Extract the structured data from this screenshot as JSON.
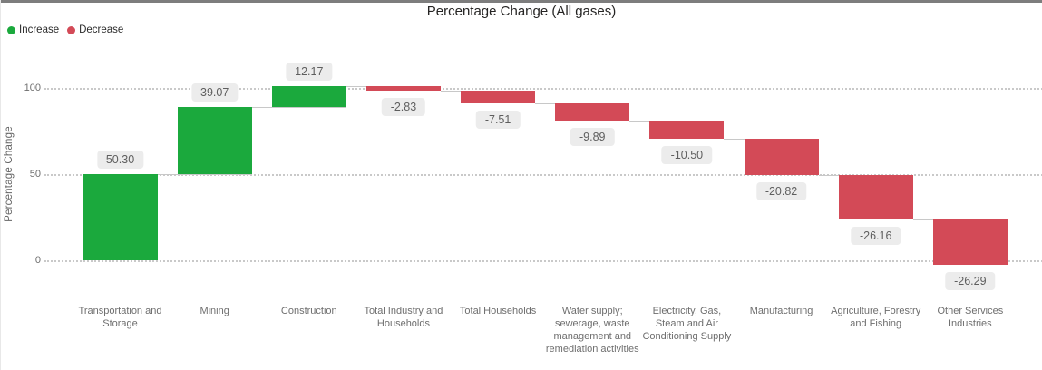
{
  "meta": {
    "title": "Percentage Change (All gases)"
  },
  "legend": {
    "items": [
      {
        "id": "increase",
        "label": "Increase",
        "color": "#1ba93d"
      },
      {
        "id": "decrease",
        "label": "Decrease",
        "color": "#d34a57"
      }
    ]
  },
  "y_axis": {
    "title": "Percentage Change",
    "ticks": [
      0,
      50,
      100
    ]
  },
  "chart_data": {
    "type": "bar",
    "subtype": "waterfall",
    "title": "Percentage Change (All gases)",
    "xlabel": "",
    "ylabel": "Percentage Change",
    "ylim": [
      -15,
      115
    ],
    "grid": "horizontal dotted at 0, 50, 100",
    "legend_position": "top-left",
    "categories": [
      "Transportation and Storage",
      "Mining",
      "Construction",
      "Total Industry and Households",
      "Total Households",
      "Water supply; sewerage, waste management and remediation activities",
      "Electricity, Gas, Steam and Air Conditioning Supply",
      "Manufacturing",
      "Agriculture, Forestry and Fishing",
      "Other Services Industries"
    ],
    "values": [
      50.3,
      39.07,
      12.17,
      -2.83,
      -7.51,
      -9.89,
      -10.5,
      -20.82,
      -26.16,
      -26.29
    ],
    "value_labels": [
      "50.30",
      "39.07",
      "12.17",
      "-2.83",
      "-7.51",
      "-9.89",
      "-10.50",
      "-20.82",
      "-26.16",
      "-26.29"
    ],
    "cumulative_end": [
      50.3,
      89.37,
      101.54,
      98.71,
      91.2,
      81.31,
      70.81,
      49.99,
      23.83,
      -2.46
    ],
    "increase_color": "#1ba93d",
    "decrease_color": "#d34a57",
    "connector_color": "#c8c8c8",
    "label_box_bg": "#ececec",
    "label_text_color": "#5e5e5e"
  }
}
